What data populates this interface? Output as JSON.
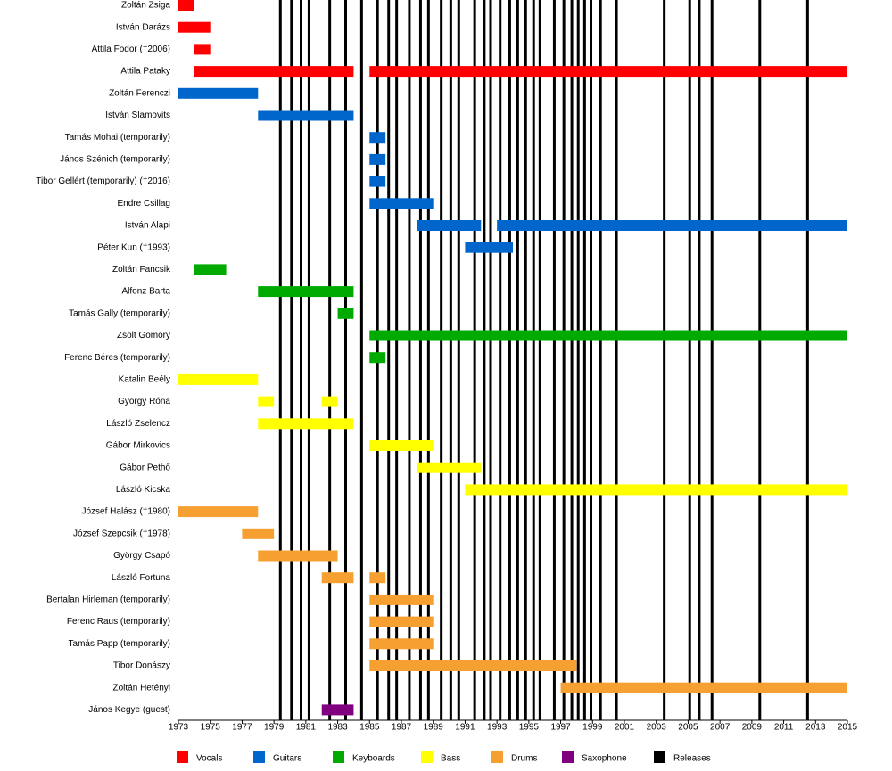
{
  "chart_data": {
    "type": "timeline",
    "xlim": [
      1973,
      2015
    ],
    "xticks": [
      1973,
      1975,
      1977,
      1979,
      1981,
      1983,
      1985,
      1987,
      1989,
      1991,
      1993,
      1995,
      1997,
      1999,
      2001,
      2003,
      2005,
      2007,
      2009,
      2011,
      2013,
      2015
    ],
    "series": [
      {
        "name": "Vocals",
        "color": "#ff0000",
        "members": [
          {
            "name": "Zoltán Zsiga",
            "periods": [
              [
                1973,
                1974
              ]
            ]
          },
          {
            "name": "István Darázs",
            "periods": [
              [
                1973,
                1975
              ]
            ]
          },
          {
            "name": "Attila Fodor (†2006)",
            "periods": [
              [
                1974,
                1975
              ]
            ]
          },
          {
            "name": "Attila Pataky",
            "periods": [
              [
                1974,
                1984
              ],
              [
                1985,
                2015
              ]
            ]
          }
        ]
      },
      {
        "name": "Guitars",
        "color": "#0066cc",
        "members": [
          {
            "name": "Zoltán Ferenczi",
            "periods": [
              [
                1973,
                1978
              ]
            ]
          },
          {
            "name": "István Slamovits",
            "periods": [
              [
                1978,
                1984
              ]
            ]
          },
          {
            "name": "Tamás Mohai (temporarily)",
            "periods": [
              [
                1985,
                1986
              ]
            ]
          },
          {
            "name": "János Szénich (temporarily)",
            "periods": [
              [
                1985,
                1986
              ]
            ]
          },
          {
            "name": "Tibor Gellért (temporarily) (†2016)",
            "periods": [
              [
                1985,
                1986
              ]
            ]
          },
          {
            "name": "Endre Csillag",
            "periods": [
              [
                1985,
                1989
              ]
            ]
          },
          {
            "name": "István Alapi",
            "periods": [
              [
                1988,
                1992
              ],
              [
                1993,
                2015
              ]
            ]
          },
          {
            "name": "Péter Kun (†1993)",
            "periods": [
              [
                1991,
                1994
              ]
            ]
          }
        ]
      },
      {
        "name": "Keyboards",
        "color": "#00aa00",
        "members": [
          {
            "name": "Zoltán Fancsik",
            "periods": [
              [
                1974,
                1976
              ]
            ]
          },
          {
            "name": "Alfonz Barta",
            "periods": [
              [
                1978,
                1984
              ]
            ]
          },
          {
            "name": "Tamás Gally (temporarily)",
            "periods": [
              [
                1983,
                1984
              ]
            ]
          },
          {
            "name": "Zsolt Gömöry",
            "periods": [
              [
                1985,
                2015
              ]
            ]
          },
          {
            "name": "Ferenc Béres (temporarily)",
            "periods": [
              [
                1985,
                1986
              ]
            ]
          }
        ]
      },
      {
        "name": "Bass",
        "color": "#ffff00",
        "members": [
          {
            "name": "Katalin Beély",
            "periods": [
              [
                1973,
                1978
              ]
            ]
          },
          {
            "name": "György Róna",
            "periods": [
              [
                1978,
                1979
              ],
              [
                1982,
                1983
              ]
            ]
          },
          {
            "name": "László Zselencz",
            "periods": [
              [
                1978,
                1984
              ]
            ]
          },
          {
            "name": "Gábor Mirkovics",
            "periods": [
              [
                1985,
                1989
              ]
            ]
          },
          {
            "name": "Gábor Pethő",
            "periods": [
              [
                1988,
                1992
              ]
            ]
          },
          {
            "name": "László Kicska",
            "periods": [
              [
                1991,
                2015
              ]
            ]
          }
        ]
      },
      {
        "name": "Drums",
        "color": "#f5a030",
        "members": [
          {
            "name": "József Halász (†1980)",
            "periods": [
              [
                1973,
                1978
              ]
            ]
          },
          {
            "name": "József Szepcsik (†1978)",
            "periods": [
              [
                1977,
                1979
              ]
            ]
          },
          {
            "name": "György Csapó",
            "periods": [
              [
                1978,
                1983
              ]
            ]
          },
          {
            "name": "László Fortuna",
            "periods": [
              [
                1982,
                1984
              ],
              [
                1985,
                1986
              ]
            ]
          },
          {
            "name": "Bertalan Hirleman (temporarily)",
            "periods": [
              [
                1985,
                1989
              ]
            ]
          },
          {
            "name": "Ferenc Raus (temporarily)",
            "periods": [
              [
                1985,
                1989
              ]
            ]
          },
          {
            "name": "Tamás Papp (temporarily)",
            "periods": [
              [
                1985,
                1989
              ]
            ]
          },
          {
            "name": "Tibor Donászy",
            "periods": [
              [
                1985,
                1998
              ]
            ]
          },
          {
            "name": "Zoltán Hetényi",
            "periods": [
              [
                1997,
                2015
              ]
            ]
          }
        ]
      },
      {
        "name": "Saxophone",
        "color": "#800080",
        "members": [
          {
            "name": "János Kegye (guest)",
            "periods": [
              [
                1982,
                1984
              ]
            ]
          }
        ]
      }
    ],
    "releases": {
      "name": "Releases",
      "color": "#000000",
      "values": [
        1979.4,
        1980.1,
        1980.7,
        1981.2,
        1982.5,
        1983.5,
        1984.5,
        1985.5,
        1986.2,
        1986.7,
        1987.5,
        1988.2,
        1988.7,
        1989.5,
        1990.1,
        1990.6,
        1991.6,
        1992.2,
        1992.6,
        1993.2,
        1993.8,
        1994.3,
        1994.8,
        1995.3,
        1995.7,
        1996.6,
        1997.2,
        1997.7,
        1998.1,
        1998.5,
        1998.9,
        1999.5,
        2000.5,
        2003.5,
        2005.1,
        2005.7,
        2006.5,
        2009.5,
        2012.5
      ]
    }
  }
}
